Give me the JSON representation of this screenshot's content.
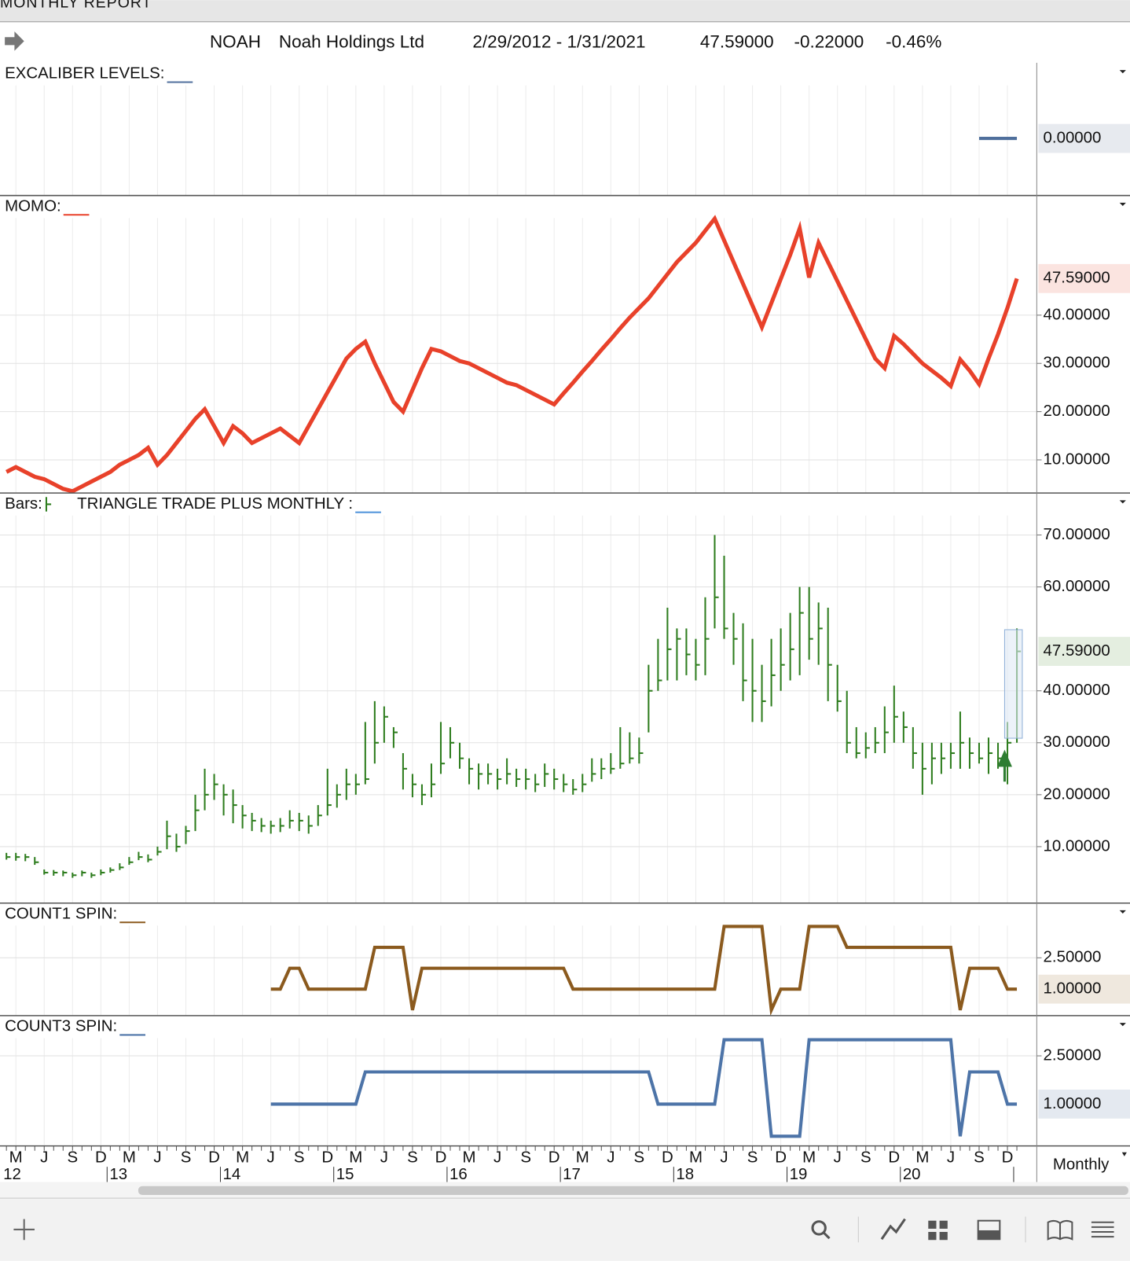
{
  "header": {
    "report": "MONTHLY REPORT",
    "symbol": "NOAH",
    "name": "Noah Holdings Ltd",
    "range": "2/29/2012 - 1/31/2021",
    "last": "47.59000",
    "change": "-0.22000",
    "pct": "-0.46%"
  },
  "x_axis": {
    "categories": [
      null,
      "M",
      null,
      null,
      "J",
      null,
      null,
      "S",
      null,
      null,
      "D",
      null,
      null,
      "M",
      null,
      null,
      "J",
      null,
      null,
      "S",
      null,
      null,
      "D",
      null,
      null,
      "M",
      null,
      null,
      "J",
      null,
      null,
      "S",
      null,
      null,
      "D",
      null,
      null,
      "M",
      null,
      null,
      "J",
      null,
      null,
      "S",
      null,
      null,
      "D",
      null,
      null,
      "M",
      null,
      null,
      "J",
      null,
      null,
      "S",
      null,
      null,
      "D",
      null,
      null,
      "M",
      null,
      null,
      "J",
      null,
      null,
      "S",
      null,
      null,
      "D",
      null,
      null,
      "M",
      null,
      null,
      "J",
      null,
      null,
      "S",
      null,
      null,
      "D",
      null,
      null,
      "M",
      null,
      null,
      "J",
      null,
      null,
      "S",
      null,
      null,
      "D",
      null,
      null,
      "M",
      null,
      null,
      "J",
      null,
      null,
      "S",
      null,
      null,
      "D",
      null
    ],
    "years": [
      "12",
      null,
      null,
      null,
      null,
      null,
      null,
      null,
      null,
      null,
      null,
      "13",
      null,
      null,
      null,
      null,
      null,
      null,
      null,
      null,
      null,
      null,
      null,
      "14",
      null,
      null,
      null,
      null,
      null,
      null,
      null,
      null,
      null,
      null,
      null,
      "15",
      null,
      null,
      null,
      null,
      null,
      null,
      null,
      null,
      null,
      null,
      null,
      "16",
      null,
      null,
      null,
      null,
      null,
      null,
      null,
      null,
      null,
      null,
      null,
      "17",
      null,
      null,
      null,
      null,
      null,
      null,
      null,
      null,
      null,
      null,
      null,
      "18",
      null,
      null,
      null,
      null,
      null,
      null,
      null,
      null,
      null,
      null,
      null,
      "19",
      null,
      null,
      null,
      null,
      null,
      null,
      null,
      null,
      null,
      null,
      null,
      "20",
      null,
      null,
      null,
      null,
      null,
      null,
      null,
      null,
      null,
      null,
      null,
      null
    ],
    "period": "Monthly"
  },
  "chart_data": [
    {
      "type": "line",
      "title": "EXCALIBER LEVELS:",
      "color": "#4f6f9c",
      "label_bg": "#e7eaef",
      "label_color": "#3d5b87",
      "ylim": [
        -1,
        1
      ],
      "yticks": [],
      "current": {
        "value": 0,
        "label": "0.00000"
      },
      "values": [
        null,
        null,
        null,
        null,
        null,
        null,
        null,
        null,
        null,
        null,
        null,
        null,
        null,
        null,
        null,
        null,
        null,
        null,
        null,
        null,
        null,
        null,
        null,
        null,
        null,
        null,
        null,
        null,
        null,
        null,
        null,
        null,
        null,
        null,
        null,
        null,
        null,
        null,
        null,
        null,
        null,
        null,
        null,
        null,
        null,
        null,
        null,
        null,
        null,
        null,
        null,
        null,
        null,
        null,
        null,
        null,
        null,
        null,
        null,
        null,
        null,
        null,
        null,
        null,
        null,
        null,
        null,
        null,
        null,
        null,
        null,
        null,
        null,
        null,
        null,
        null,
        null,
        null,
        null,
        null,
        null,
        null,
        null,
        null,
        null,
        null,
        null,
        null,
        null,
        null,
        null,
        null,
        null,
        null,
        null,
        null,
        null,
        null,
        null,
        null,
        null,
        null,
        null,
        0,
        0,
        0,
        0,
        0
      ]
    },
    {
      "type": "line",
      "title": "MOMO:",
      "color": "#e8412a",
      "label_bg": "#fbe4e0",
      "label_color": "#c0392b",
      "ylim": [
        3.3,
        60.3
      ],
      "yticks": [
        {
          "value": 10,
          "label": "10.00000"
        },
        {
          "value": 20,
          "label": "20.00000"
        },
        {
          "value": 30,
          "label": "30.00000"
        },
        {
          "value": 40,
          "label": "40.00000"
        }
      ],
      "current": {
        "value": 47.59,
        "label": "47.59000"
      },
      "values": [
        7.5,
        8.5,
        7.5,
        6.5,
        6,
        5,
        4,
        3.5,
        4.5,
        5.5,
        6.5,
        7.5,
        9,
        10,
        11,
        12.5,
        9,
        11,
        13.5,
        16,
        18.5,
        20.5,
        17,
        13.5,
        17,
        15.5,
        13.5,
        14.5,
        15.5,
        16.5,
        15,
        13.5,
        17,
        20.5,
        24,
        27.5,
        31,
        33,
        34.5,
        30,
        26,
        22,
        20,
        24.5,
        29,
        33,
        32.5,
        31.5,
        30.5,
        30,
        29,
        28,
        27,
        26,
        25.5,
        24.5,
        23.5,
        22.5,
        21.5,
        23.8,
        26,
        28.3,
        30.5,
        32.8,
        35,
        37.3,
        39.5,
        41.5,
        43.5,
        46,
        48.5,
        51,
        53,
        55,
        57.5,
        60,
        55.5,
        51,
        46.5,
        42,
        37.5,
        42.5,
        47.5,
        52.5,
        58,
        47.8,
        55,
        51,
        47,
        43,
        39,
        35,
        31,
        29,
        35.7,
        34,
        32,
        30,
        28.5,
        27,
        25.3,
        30.8,
        28.5,
        25.7,
        31,
        36,
        41.5,
        47.59
      ]
    },
    {
      "type": "ohlc",
      "title": "Bars:",
      "indicator": "TRIANGLE TRADE PLUS MONTHLY :",
      "indicator_color": "#4a90d9",
      "color": "#2e7d1e",
      "label_bg": "#e4eee0",
      "label_color": "#2e7d1e",
      "ylim": [
        -0.4,
        73.9
      ],
      "yticks": [
        {
          "value": 10,
          "label": "10.00000"
        },
        {
          "value": 20,
          "label": "20.00000"
        },
        {
          "value": 30,
          "label": "30.00000"
        },
        {
          "value": 40,
          "label": "40.00000"
        },
        {
          "value": 60,
          "label": "60.00000"
        },
        {
          "value": 70,
          "label": "70.00000"
        }
      ],
      "current": {
        "value": 47.59,
        "label": "47.59000"
      },
      "high": [
        8.8,
        8.8,
        8.6,
        8,
        5.6,
        5.5,
        5.4,
        5,
        5.4,
        5,
        5.6,
        6,
        6.8,
        8,
        9,
        8.5,
        10,
        15,
        12.5,
        14,
        20,
        25,
        24,
        22,
        21,
        18,
        16.5,
        15.5,
        15,
        15.5,
        17,
        16.5,
        16,
        18,
        25,
        22,
        25,
        24,
        34,
        38,
        37,
        33,
        28,
        24,
        22,
        26,
        34,
        33,
        30,
        27,
        26,
        26,
        25,
        27,
        25,
        25,
        24,
        26,
        25,
        24,
        23,
        24,
        27,
        27,
        28,
        33,
        32,
        31,
        45,
        50,
        56,
        52,
        52,
        50,
        58,
        70,
        66,
        55,
        53,
        50,
        45,
        50,
        52,
        55,
        60,
        60,
        57,
        56,
        45,
        40,
        33,
        32,
        33,
        37,
        41,
        36,
        33,
        30,
        30,
        30,
        30,
        36,
        31,
        30,
        31,
        30,
        34,
        52
      ],
      "low": [
        7.5,
        7.3,
        7.2,
        6.5,
        4.6,
        4.4,
        4.3,
        4,
        4.3,
        4,
        4.5,
        5,
        5.5,
        6.5,
        7.4,
        7,
        8.3,
        9.5,
        9,
        10.5,
        13,
        17,
        19,
        16,
        14.5,
        13.5,
        13,
        12.8,
        12.5,
        12.8,
        13.5,
        13,
        12.5,
        14,
        16,
        17.5,
        19,
        20,
        22,
        26,
        30,
        29,
        21,
        19.5,
        18,
        19.5,
        24,
        27,
        25,
        22,
        21,
        22,
        21,
        22,
        21.5,
        21,
        20.5,
        21.5,
        21,
        20.5,
        20,
        20.5,
        22.5,
        23,
        24,
        25,
        26,
        26,
        32,
        40,
        42,
        42,
        43,
        42,
        43,
        52,
        50,
        45,
        38,
        34,
        34,
        37,
        40,
        42,
        43,
        46,
        45,
        38,
        36,
        28,
        27,
        27,
        28,
        28,
        30,
        30,
        25,
        20,
        22,
        24,
        25,
        25,
        25,
        26,
        24,
        25,
        22,
        30
      ],
      "close": [
        8,
        8,
        8,
        7,
        5,
        5,
        5,
        4.5,
        5,
        4.5,
        5,
        5.5,
        6,
        7,
        8,
        7.5,
        9,
        12,
        10,
        13,
        17,
        20,
        22,
        20,
        18,
        16,
        15,
        14,
        14,
        14,
        15,
        15,
        14,
        16,
        18,
        20,
        22,
        22,
        23,
        30,
        35,
        32,
        25,
        22,
        20,
        22,
        26,
        30,
        27,
        25,
        24,
        24,
        23,
        24,
        23,
        23,
        22,
        24,
        23,
        22,
        21,
        22,
        24,
        25,
        25,
        26,
        27,
        28,
        40,
        42,
        48,
        50,
        47,
        45,
        50,
        58,
        52,
        50,
        42,
        40,
        38,
        43,
        45,
        48,
        55,
        50,
        52,
        45,
        38,
        30,
        28,
        29,
        30,
        32,
        35,
        33,
        28,
        25,
        27,
        27,
        28,
        30,
        28,
        27,
        28,
        27,
        30,
        47.59
      ]
    },
    {
      "type": "line",
      "title": "COUNT1 SPIN:",
      "color": "#8b5a1e",
      "label_bg": "#efe8de",
      "label_color": "#7a4f1a",
      "ylim": [
        -0.23,
        4.08
      ],
      "yticks": [
        {
          "value": 2.5,
          "label": "2.50000"
        }
      ],
      "current": {
        "value": 1,
        "label": "1.00000"
      },
      "values": [
        null,
        null,
        null,
        null,
        null,
        null,
        null,
        null,
        null,
        null,
        null,
        null,
        null,
        null,
        null,
        null,
        null,
        null,
        null,
        null,
        null,
        null,
        null,
        null,
        null,
        null,
        null,
        null,
        1,
        1,
        2,
        2,
        1,
        1,
        1,
        1,
        1,
        1,
        1,
        3,
        3,
        3,
        3,
        0,
        2,
        2,
        2,
        2,
        2,
        2,
        2,
        2,
        2,
        2,
        2,
        2,
        2,
        2,
        2,
        2,
        1,
        1,
        1,
        1,
        1,
        1,
        1,
        1,
        1,
        1,
        1,
        1,
        1,
        1,
        1,
        1,
        4,
        4,
        4,
        4,
        4,
        0,
        1,
        1,
        1,
        4,
        4,
        4,
        4,
        3,
        3,
        3,
        3,
        3,
        3,
        3,
        3,
        3,
        3,
        3,
        3,
        0,
        2,
        2,
        2,
        2,
        1,
        1
      ]
    },
    {
      "type": "line",
      "title": "COUNT3 SPIN:",
      "color": "#4d74a8",
      "label_bg": "#e4e9f0",
      "label_color": "#3d5b87",
      "ylim": [
        -0.3,
        3.075
      ],
      "yticks": [
        {
          "value": 2.5,
          "label": "2.50000"
        }
      ],
      "current": {
        "value": 1,
        "label": "1.00000"
      },
      "values": [
        null,
        null,
        null,
        null,
        null,
        null,
        null,
        null,
        null,
        null,
        null,
        null,
        null,
        null,
        null,
        null,
        null,
        null,
        null,
        null,
        null,
        null,
        null,
        null,
        null,
        null,
        null,
        null,
        1,
        1,
        1,
        1,
        1,
        1,
        1,
        1,
        1,
        1,
        2,
        2,
        2,
        2,
        2,
        2,
        2,
        2,
        2,
        2,
        2,
        2,
        2,
        2,
        2,
        2,
        2,
        2,
        2,
        2,
        2,
        2,
        2,
        2,
        2,
        2,
        2,
        2,
        2,
        2,
        2,
        1,
        1,
        1,
        1,
        1,
        1,
        1,
        3,
        3,
        3,
        3,
        3,
        0,
        0,
        0,
        0,
        3,
        3,
        3,
        3,
        3,
        3,
        3,
        3,
        3,
        3,
        3,
        3,
        3,
        3,
        3,
        3,
        0,
        2,
        2,
        2,
        2,
        1,
        1
      ]
    }
  ]
}
